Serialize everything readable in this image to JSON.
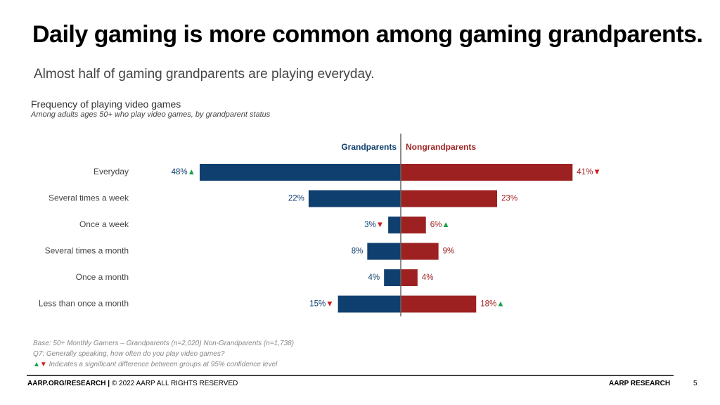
{
  "header": {
    "title": "Daily gaming is more common among gaming grandparents.",
    "subtitle": "Almost half of gaming grandparents are playing everyday."
  },
  "chart_data": {
    "type": "bar",
    "orientation": "horizontal-diverging",
    "title": "Frequency of playing video games",
    "subtitle": "Among adults ages 50+ who play video games, by grandparent status",
    "unit": "%",
    "categories": [
      "Everyday",
      "Several times a week",
      "Once a week",
      "Several times a month",
      "Once a month",
      "Less than once a month"
    ],
    "series": [
      {
        "name": "Grandparents",
        "color": "#0f3f6e",
        "values": [
          48,
          22,
          3,
          8,
          4,
          15
        ],
        "markers": [
          "up",
          "",
          "down",
          "",
          "",
          "down"
        ]
      },
      {
        "name": "Nongrandparents",
        "color": "#9e2121",
        "values": [
          41,
          23,
          6,
          9,
          4,
          18
        ],
        "markers": [
          "down",
          "",
          "up",
          "",
          "",
          "up"
        ]
      }
    ],
    "marker_colors": {
      "up": "#17a24a",
      "down": "#cc1f1f"
    },
    "xlim": [
      0,
      50
    ]
  },
  "notes": {
    "base": "Base: 50+ Monthly Gamers – Grandparents (n=2,020) Non-Grandparents (n=1,738)",
    "question": "Q7: Generally speaking, how often do you play video games?",
    "significance_up_symbol": "▲",
    "significance_down_symbol": "▼",
    "significance": " Indicates a significant difference between groups at 95% confidence level"
  },
  "footer": {
    "left_bold": "AARP.ORG/RESEARCH |",
    "left_text": " © 2022 AARP ALL RIGHTS RESERVED",
    "right": "AARP RESEARCH",
    "page": "5"
  }
}
